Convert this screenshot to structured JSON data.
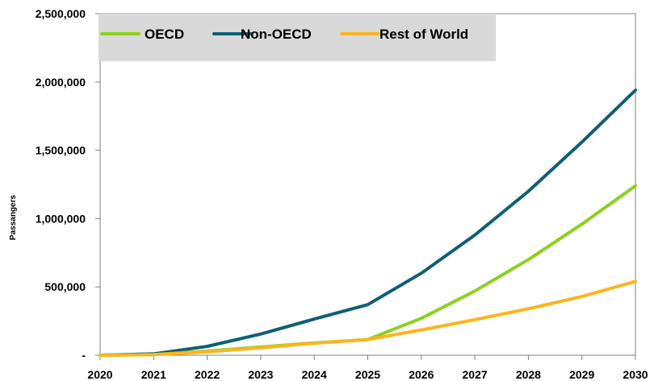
{
  "chart_data": {
    "type": "line",
    "title": "",
    "xlabel": "",
    "ylabel": "Passangers",
    "x": [
      "2020",
      "2021",
      "2022",
      "2023",
      "2024",
      "2025",
      "2026",
      "2027",
      "2028",
      "2029",
      "2030"
    ],
    "ylim": [
      0,
      2500000
    ],
    "yticks": [
      0,
      500000,
      1000000,
      1500000,
      2000000,
      2500000
    ],
    "ytick_labels": [
      "-",
      "500,000",
      "1,000,000",
      "1,500,000",
      "2,000,000",
      "2,500,000"
    ],
    "grid": false,
    "legend": "top-left",
    "series": [
      {
        "name": "OECD",
        "color": "#8CD11E",
        "values": [
          0,
          5000,
          30000,
          60000,
          90000,
          115000,
          270000,
          470000,
          700000,
          960000,
          1240000
        ]
      },
      {
        "name": "Non-OECD",
        "color": "#0F5F73",
        "values": [
          0,
          10000,
          65000,
          155000,
          265000,
          370000,
          600000,
          880000,
          1200000,
          1560000,
          1940000
        ]
      },
      {
        "name": "Rest of World",
        "color": "#FDB41E",
        "values": [
          0,
          4000,
          25000,
          55000,
          88000,
          115000,
          185000,
          260000,
          340000,
          430000,
          540000
        ]
      }
    ]
  },
  "legend_box_color": "#D9D9D9",
  "axis_color": "#808080"
}
